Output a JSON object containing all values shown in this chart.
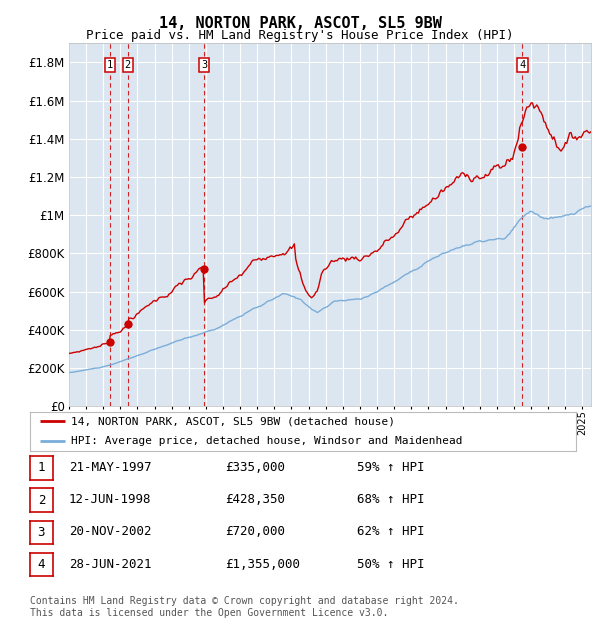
{
  "title": "14, NORTON PARK, ASCOT, SL5 9BW",
  "subtitle": "Price paid vs. HM Land Registry's House Price Index (HPI)",
  "title_fontsize": 11,
  "subtitle_fontsize": 9,
  "background_color": "#dce6f0",
  "plot_bg_color": "#dce6f0",
  "grid_color": "#ffffff",
  "ylim": [
    0,
    1900000
  ],
  "yticks": [
    0,
    200000,
    400000,
    600000,
    800000,
    1000000,
    1200000,
    1400000,
    1600000,
    1800000
  ],
  "ytick_labels": [
    "£0",
    "£200K",
    "£400K",
    "£600K",
    "£800K",
    "£1M",
    "£1.2M",
    "£1.4M",
    "£1.6M",
    "£1.8M"
  ],
  "xlim_start": 1995.0,
  "xlim_end": 2025.5,
  "sale_dates": [
    1997.386,
    1998.44,
    2002.894,
    2021.486
  ],
  "sale_prices": [
    335000,
    428350,
    720000,
    1355000
  ],
  "sale_labels": [
    "1",
    "2",
    "3",
    "4"
  ],
  "red_line_color": "#cc0000",
  "blue_line_color": "#7aadda",
  "sale_dot_color": "#cc0000",
  "vline_color": "#cc0000",
  "legend_label_red": "14, NORTON PARK, ASCOT, SL5 9BW (detached house)",
  "legend_label_blue": "HPI: Average price, detached house, Windsor and Maidenhead",
  "table_rows": [
    [
      "1",
      "21-MAY-1997",
      "£335,000",
      "59% ↑ HPI"
    ],
    [
      "2",
      "12-JUN-1998",
      "£428,350",
      "68% ↑ HPI"
    ],
    [
      "3",
      "20-NOV-2002",
      "£720,000",
      "62% ↑ HPI"
    ],
    [
      "4",
      "28-JUN-2021",
      "£1,355,000",
      "50% ↑ HPI"
    ]
  ],
  "footnote": "Contains HM Land Registry data © Crown copyright and database right 2024.\nThis data is licensed under the Open Government Licence v3.0.",
  "footnote_fontsize": 7
}
